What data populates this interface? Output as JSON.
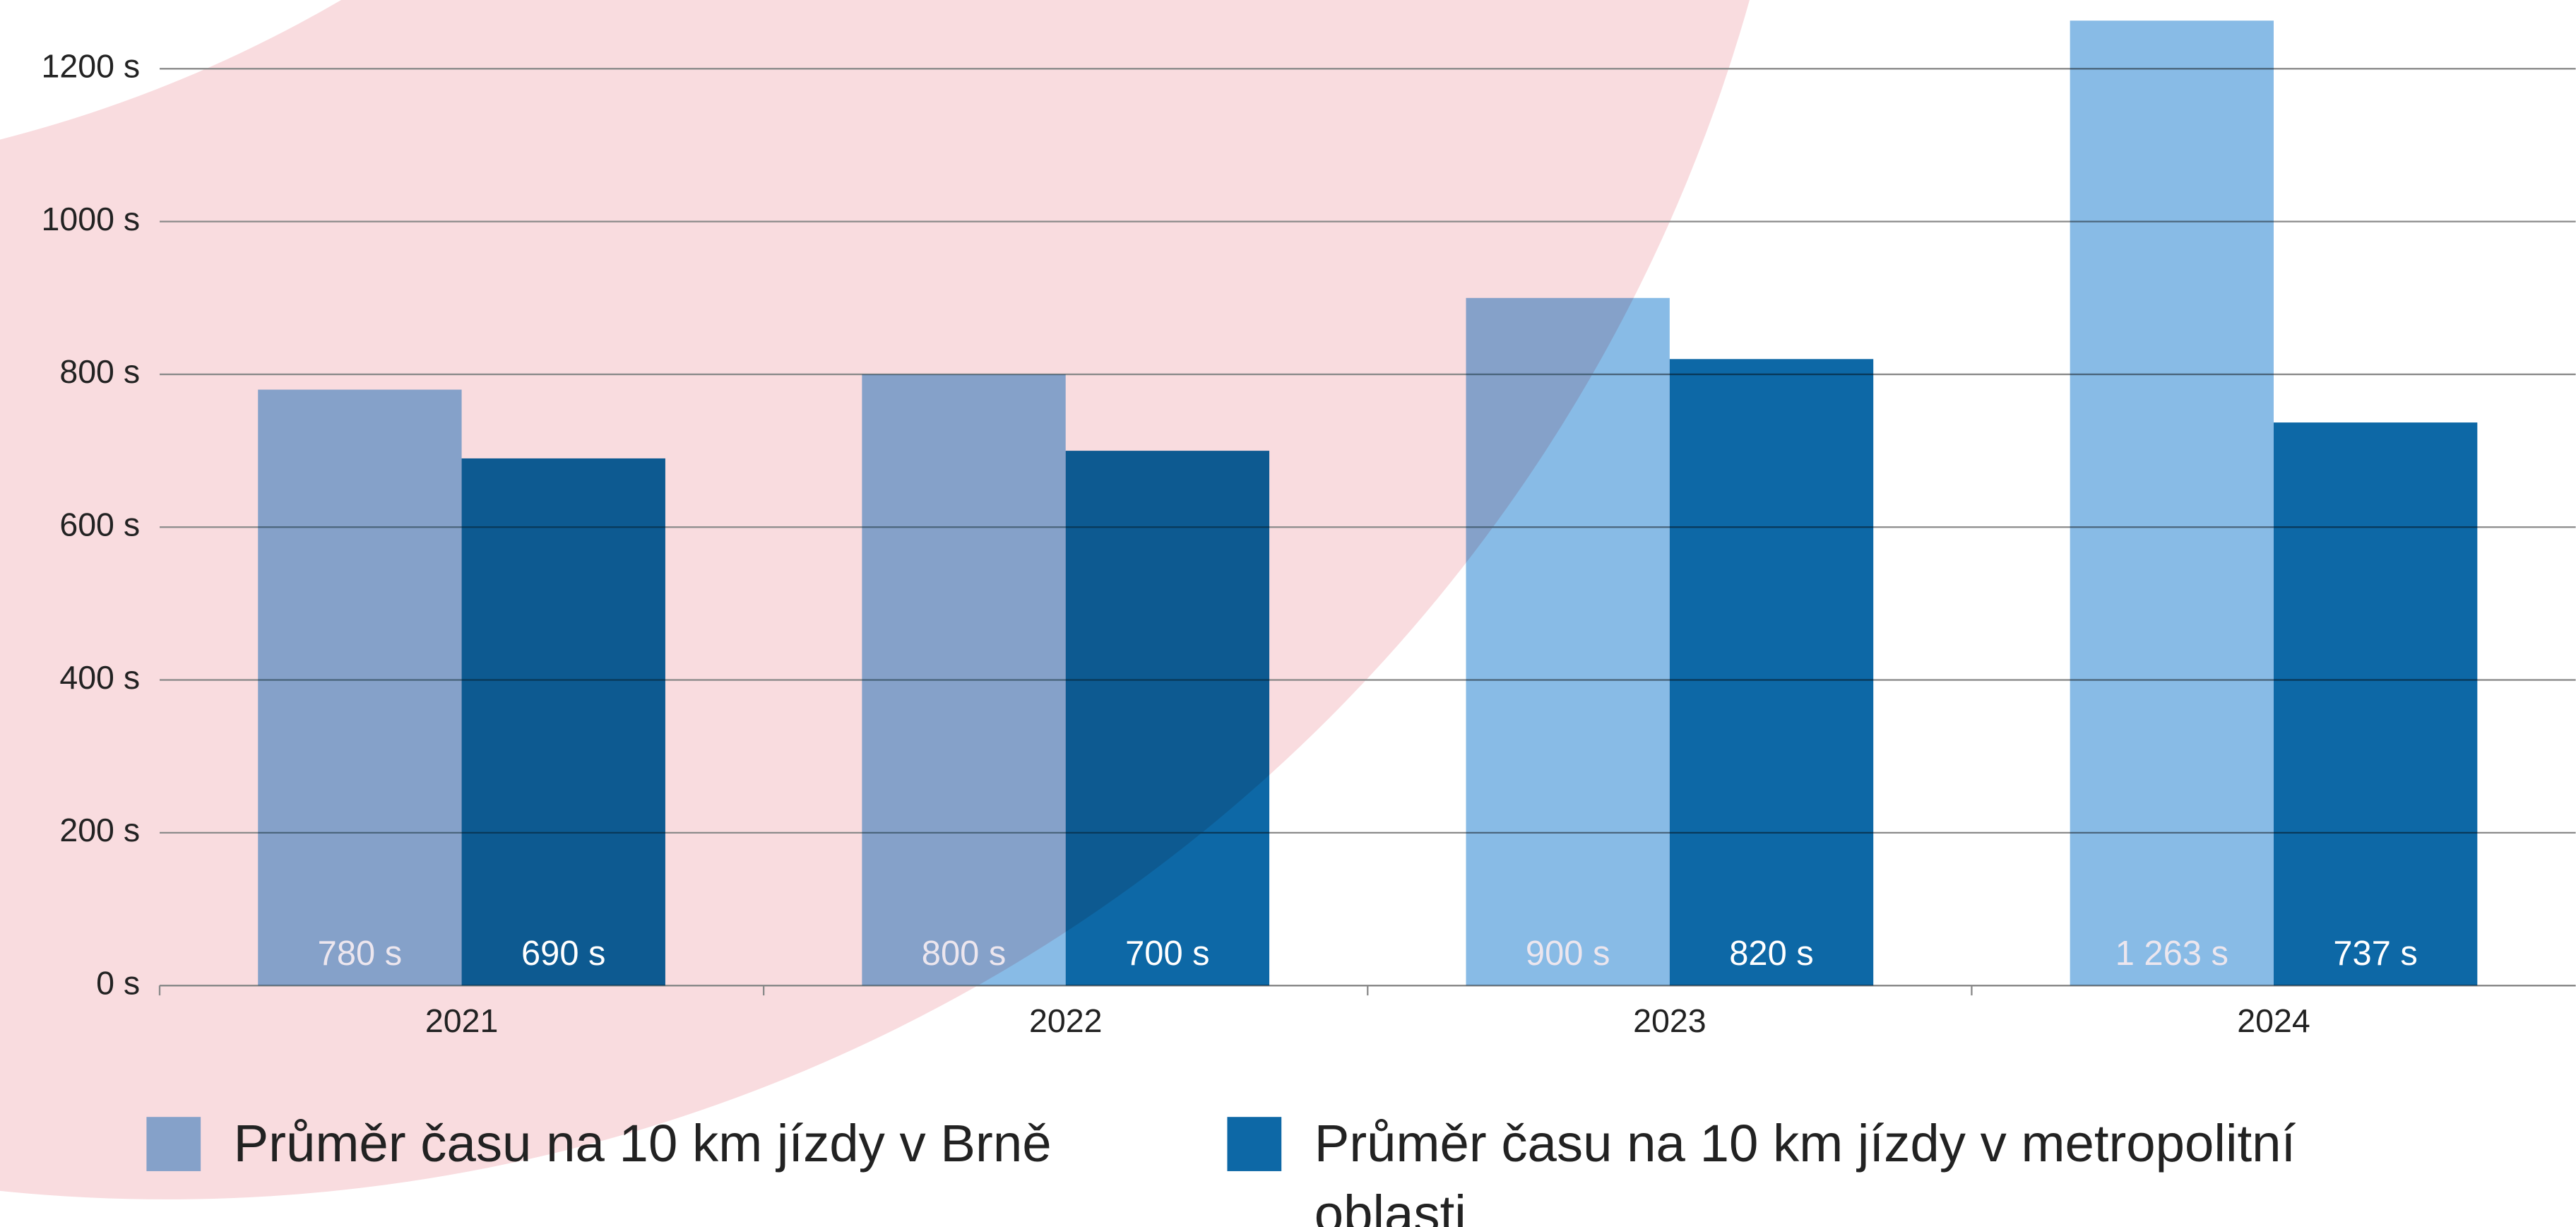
{
  "chart_data": {
    "type": "bar",
    "categories": [
      "2021",
      "2022",
      "2023",
      "2024"
    ],
    "series": [
      {
        "name": "Průměr času na 10 km jízdy v Brně",
        "color": "#88bbe6",
        "values": [
          780,
          800,
          900,
          1263
        ],
        "value_labels": [
          "780 s",
          "800 s",
          "900 s",
          "1 263 s"
        ]
      },
      {
        "name": "Průměr času na 10 km jízdy v metropo­litní oblasti",
        "color": "#0d68a6",
        "values": [
          690,
          700,
          820,
          737
        ],
        "value_labels": [
          "690 s",
          "700 s",
          "820 s",
          "737 s"
        ]
      }
    ],
    "ylim": [
      0,
      1290
    ],
    "yticks": [
      {
        "value": 0,
        "label": "0 s"
      },
      {
        "value": 200,
        "label": "200 s"
      },
      {
        "value": 400,
        "label": "400 s"
      },
      {
        "value": 600,
        "label": "600 s"
      },
      {
        "value": 800,
        "label": "800 s"
      },
      {
        "value": 1000,
        "label": "1000 s"
      },
      {
        "value": 1200,
        "label": "1200 s"
      }
    ],
    "grid": true
  }
}
